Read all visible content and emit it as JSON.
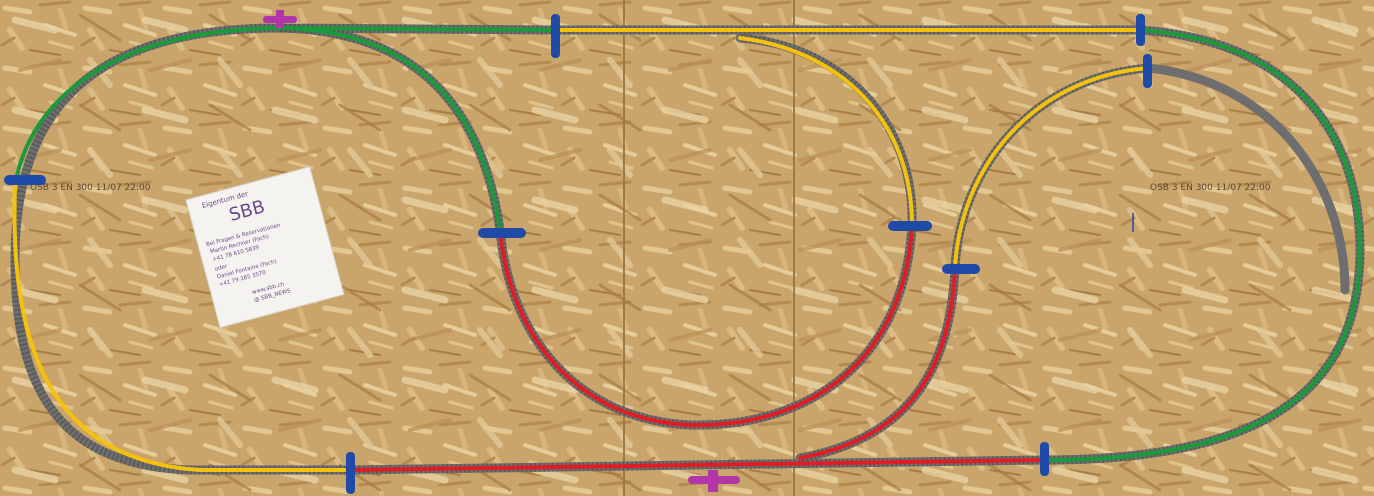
{
  "photo": {
    "subject": "Model railway track layout on OSB board",
    "board_color": "#c9a46a",
    "seam_color": "#a9844e"
  },
  "route_colors": {
    "green": "#1a9a3a",
    "yellow": "#f4c20d",
    "red": "#e01d24",
    "track": "#6b6b6b",
    "connector_blue": "#1f4aa8",
    "connector_purple": "#b236a8"
  },
  "note": {
    "line1": "Eigentum der",
    "line2": "SBB",
    "line3": "Bei Fragen & Reservationen",
    "line4": "Martin Rechner (Fach)",
    "line5": "+41 78 610 5839",
    "line6": "oder",
    "line7": "Daniel Fontaine (Fach)",
    "line8": "+41 79 285 3570",
    "line9": "www.sbb.ch",
    "line10": "@ SBB_NEWS"
  },
  "board_print": {
    "left": "OSB 3 EN 300 11/07 22:00",
    "right": "OSB 3 EN 300 11/07 22:00"
  }
}
